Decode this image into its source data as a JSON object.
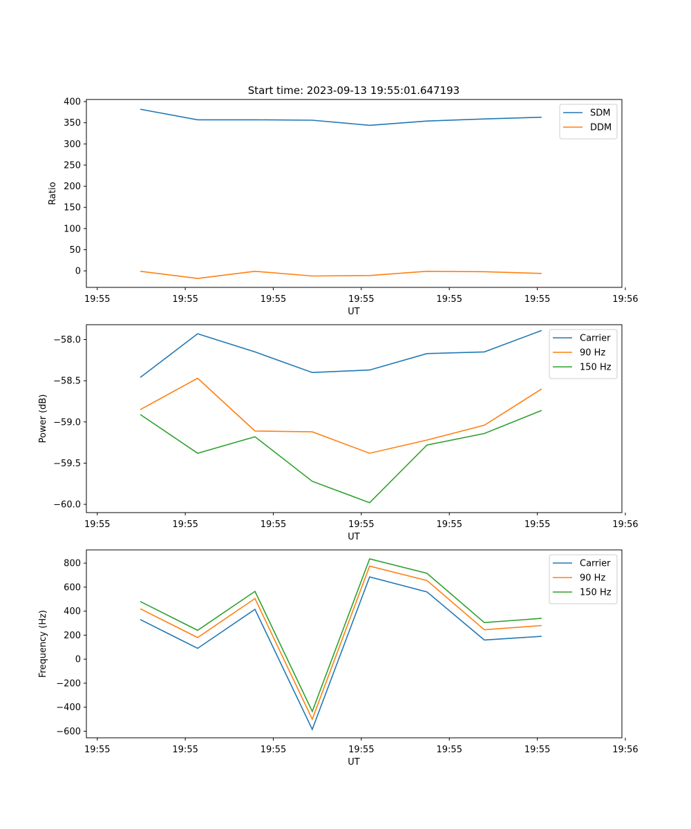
{
  "title": "Start time: 2023-09-13 19:55:01.647193",
  "chart_data": [
    {
      "type": "line",
      "title": "Start time: 2023-09-13 19:55:01.647193",
      "xlabel": "UT",
      "ylabel": "Ratio",
      "x_tick_labels": [
        "19:55",
        "19:55",
        "19:55",
        "19:55",
        "19:55",
        "19:55",
        "19:56"
      ],
      "y_ticks": [
        0,
        50,
        100,
        150,
        200,
        250,
        300,
        350,
        400
      ],
      "y_tick_labels": [
        "0",
        "50",
        "100",
        "150",
        "200",
        "250",
        "300",
        "350",
        "400"
      ],
      "ylim": [
        -39,
        405
      ],
      "x": [
        1,
        2,
        3,
        4,
        5,
        6,
        7,
        8
      ],
      "xlim": [
        0.06,
        9.4
      ],
      "x_ticks": [
        0.25,
        1.785,
        3.32,
        4.855,
        6.39,
        7.925,
        9.46
      ],
      "legend_position": "top-right",
      "series": [
        {
          "name": "SDM",
          "color": "#1f77b4",
          "values": [
            382,
            357,
            357,
            356,
            344,
            354,
            359,
            363
          ]
        },
        {
          "name": "DDM",
          "color": "#ff7f0e",
          "values": [
            -1,
            -18,
            -1,
            -12,
            -11,
            -1,
            -2,
            -6
          ]
        }
      ]
    },
    {
      "type": "line",
      "title": "",
      "xlabel": "UT",
      "ylabel": "Power (dB)",
      "x_tick_labels": [
        "19:55",
        "19:55",
        "19:55",
        "19:55",
        "19:55",
        "19:55",
        "19:56"
      ],
      "y_ticks": [
        -60.0,
        -59.5,
        -59.0,
        -58.5,
        -58.0
      ],
      "y_tick_labels": [
        "−60.0",
        "−59.5",
        "−59.0",
        "−58.5",
        "−58.0"
      ],
      "ylim": [
        -60.1,
        -57.82
      ],
      "x": [
        1,
        2,
        3,
        4,
        5,
        6,
        7,
        8
      ],
      "xlim": [
        0.06,
        9.4
      ],
      "x_ticks": [
        0.25,
        1.785,
        3.32,
        4.855,
        6.39,
        7.925,
        9.46
      ],
      "legend_position": "top-right",
      "series": [
        {
          "name": "Carrier",
          "color": "#1f77b4",
          "values": [
            -58.46,
            -57.93,
            -58.15,
            -58.4,
            -58.37,
            -58.17,
            -58.15,
            -57.89
          ]
        },
        {
          "name": "90 Hz",
          "color": "#ff7f0e",
          "values": [
            -58.85,
            -58.47,
            -59.11,
            -59.12,
            -59.38,
            -59.22,
            -59.04,
            -58.6
          ]
        },
        {
          "name": "150 Hz",
          "color": "#2ca02c",
          "values": [
            -58.91,
            -59.38,
            -59.18,
            -59.72,
            -59.98,
            -59.28,
            -59.14,
            -58.86
          ]
        }
      ]
    },
    {
      "type": "line",
      "title": "",
      "xlabel": "UT",
      "ylabel": "Frequency (Hz)",
      "x_tick_labels": [
        "19:55",
        "19:55",
        "19:55",
        "19:55",
        "19:55",
        "19:55",
        "19:56"
      ],
      "y_ticks": [
        -600,
        -400,
        -200,
        0,
        200,
        400,
        600,
        800
      ],
      "y_tick_labels": [
        "−600",
        "−400",
        "−200",
        "0",
        "200",
        "400",
        "600",
        "800"
      ],
      "ylim": [
        -655,
        910
      ],
      "x": [
        1,
        2,
        3,
        4,
        5,
        6,
        7,
        8
      ],
      "xlim": [
        0.06,
        9.4
      ],
      "x_ticks": [
        0.25,
        1.785,
        3.32,
        4.855,
        6.39,
        7.925,
        9.46
      ],
      "legend_position": "top-right",
      "series": [
        {
          "name": "Carrier",
          "color": "#1f77b4",
          "values": [
            330,
            90,
            415,
            -585,
            685,
            560,
            160,
            190
          ]
        },
        {
          "name": "90 Hz",
          "color": "#ff7f0e",
          "values": [
            420,
            180,
            505,
            -500,
            775,
            655,
            245,
            280
          ]
        },
        {
          "name": "150 Hz",
          "color": "#2ca02c",
          "values": [
            480,
            240,
            565,
            -435,
            835,
            715,
            305,
            340
          ]
        }
      ]
    }
  ]
}
